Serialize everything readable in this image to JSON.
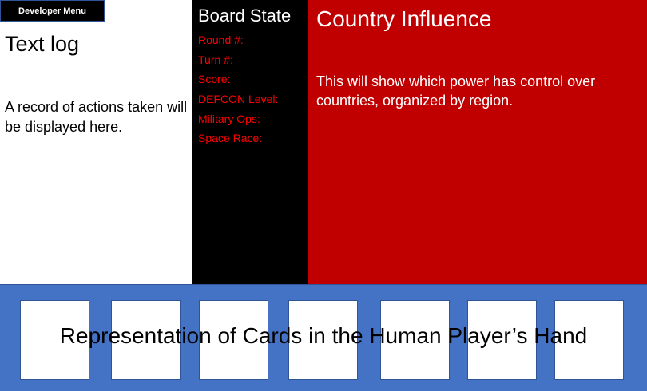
{
  "developer_menu": {
    "label": "Developer Menu"
  },
  "text_log": {
    "title": "Text log",
    "description": "A record of actions taken will be displayed here."
  },
  "board_state": {
    "title": "Board State",
    "stats": [
      {
        "label": "Round #:"
      },
      {
        "label": "Turn #:"
      },
      {
        "label": "Score:"
      },
      {
        "label": "DEFCON Level:"
      },
      {
        "label": "Military Ops:"
      },
      {
        "label": "Space Race:"
      }
    ]
  },
  "country_influence": {
    "title": "Country Influence",
    "description": "This will show which power has control over countries, organized by region."
  },
  "hand": {
    "caption": "Representation of Cards in the Human Player’s Hand",
    "card_count": 7
  },
  "colors": {
    "board_bg": "#000000",
    "board_stat_text": "#ff0000",
    "country_bg": "#c00000",
    "hand_bg": "#4472c4",
    "card_bg": "#ffffff"
  }
}
